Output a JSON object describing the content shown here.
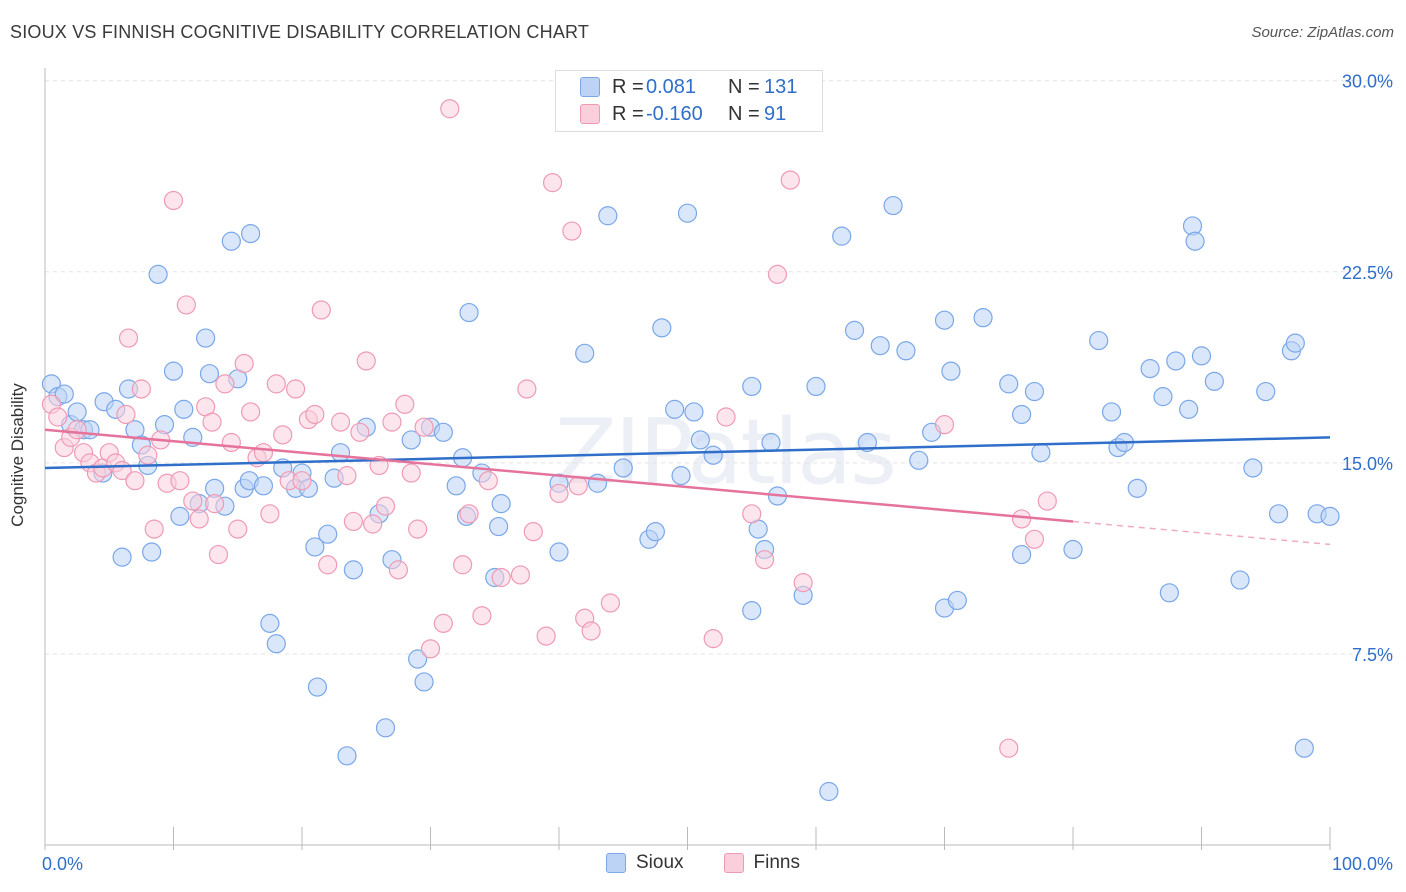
{
  "header": {
    "title": "SIOUX VS FINNISH COGNITIVE DISABILITY CORRELATION CHART",
    "source": "Source: ZipAtlas.com"
  },
  "watermark": "ZIPatlas",
  "stats": [
    {
      "r_label": "R =",
      "r_value": "0.081",
      "n_label": "N =",
      "n_value": "131",
      "color": "#7aa7e8",
      "fill": "#bcd3f5"
    },
    {
      "r_label": "R =",
      "r_value": "-0.160",
      "n_label": "N =",
      "n_value": "91",
      "color": "#ef9ab5",
      "fill": "#f9cfdc"
    }
  ],
  "legend": [
    {
      "label": "Sioux",
      "color": "#7aa7e8",
      "fill": "#bcd3f5"
    },
    {
      "label": "Finns",
      "color": "#ef9ab5",
      "fill": "#f9cfdc"
    }
  ],
  "chart_data": {
    "type": "scatter",
    "title": "SIOUX VS FINNISH COGNITIVE DISABILITY CORRELATION CHART",
    "xlabel": "",
    "ylabel": "Cognitive Disability",
    "xlim": [
      0,
      100
    ],
    "ylim": [
      0,
      30.5
    ],
    "x_tick_labels": [
      "0.0%",
      "100.0%"
    ],
    "y_ticks": [
      7.5,
      15.0,
      22.5,
      30.0
    ],
    "y_tick_labels": [
      "7.5%",
      "15.0%",
      "22.5%",
      "30.0%"
    ],
    "grid": true,
    "series": [
      {
        "name": "Sioux",
        "color": "#7aa7e8",
        "fill": "#bcd3f5",
        "trend_color": "#2f6fca",
        "trend": {
          "x0": 0,
          "y0": 14.8,
          "x1": 100,
          "y1": 16.0
        },
        "points": [
          [
            0.5,
            18.1
          ],
          [
            1,
            17.6
          ],
          [
            1.5,
            17.7
          ],
          [
            2,
            16.5
          ],
          [
            2.5,
            17.0
          ],
          [
            3,
            16.3
          ],
          [
            3.5,
            16.3
          ],
          [
            4.5,
            14.6
          ],
          [
            4.6,
            17.4
          ],
          [
            5.5,
            17.1
          ],
          [
            6,
            11.3
          ],
          [
            6.5,
            17.9
          ],
          [
            7,
            16.3
          ],
          [
            7.5,
            15.7
          ],
          [
            8,
            14.9
          ],
          [
            8.3,
            11.5
          ],
          [
            8.8,
            22.4
          ],
          [
            9.3,
            16.5
          ],
          [
            10,
            18.6
          ],
          [
            10.5,
            12.9
          ],
          [
            10.8,
            17.1
          ],
          [
            11.5,
            16.0
          ],
          [
            12,
            13.4
          ],
          [
            12.5,
            19.9
          ],
          [
            12.8,
            18.5
          ],
          [
            13.2,
            14.0
          ],
          [
            14,
            13.3
          ],
          [
            14.5,
            23.7
          ],
          [
            15,
            18.3
          ],
          [
            15.5,
            14.0
          ],
          [
            15.9,
            14.3
          ],
          [
            16,
            24.0
          ],
          [
            17,
            14.1
          ],
          [
            17.5,
            8.7
          ],
          [
            18,
            7.9
          ],
          [
            18.5,
            14.8
          ],
          [
            19.5,
            14.0
          ],
          [
            20,
            14.6
          ],
          [
            20.5,
            14.0
          ],
          [
            21,
            11.7
          ],
          [
            21.2,
            6.2
          ],
          [
            22,
            12.2
          ],
          [
            22.5,
            14.4
          ],
          [
            23,
            15.4
          ],
          [
            23.5,
            3.5
          ],
          [
            24,
            10.8
          ],
          [
            25,
            16.4
          ],
          [
            26,
            13.0
          ],
          [
            26.5,
            4.6
          ],
          [
            27,
            11.2
          ],
          [
            28.5,
            15.9
          ],
          [
            29,
            7.3
          ],
          [
            29.5,
            6.4
          ],
          [
            30,
            16.4
          ],
          [
            31,
            16.2
          ],
          [
            32,
            14.1
          ],
          [
            32.5,
            15.2
          ],
          [
            32.8,
            12.9
          ],
          [
            33,
            20.9
          ],
          [
            34,
            14.6
          ],
          [
            35,
            10.5
          ],
          [
            35.3,
            12.5
          ],
          [
            35.5,
            13.4
          ],
          [
            40,
            11.5
          ],
          [
            40,
            14.2
          ],
          [
            42,
            19.3
          ],
          [
            43,
            14.2
          ],
          [
            43.8,
            24.7
          ],
          [
            45,
            14.8
          ],
          [
            47,
            12.0
          ],
          [
            47.5,
            12.3
          ],
          [
            48,
            20.3
          ],
          [
            49,
            17.1
          ],
          [
            49.5,
            14.5
          ],
          [
            50,
            24.8
          ],
          [
            50.5,
            17.0
          ],
          [
            51,
            15.9
          ],
          [
            52,
            15.3
          ],
          [
            55,
            18.0
          ],
          [
            55,
            9.2
          ],
          [
            55.5,
            12.4
          ],
          [
            56,
            11.6
          ],
          [
            56.5,
            15.8
          ],
          [
            57,
            13.7
          ],
          [
            59,
            9.8
          ],
          [
            60,
            18.0
          ],
          [
            61,
            2.1
          ],
          [
            62,
            23.9
          ],
          [
            63,
            20.2
          ],
          [
            64,
            15.8
          ],
          [
            65,
            19.6
          ],
          [
            66,
            25.1
          ],
          [
            67,
            19.4
          ],
          [
            68,
            15.1
          ],
          [
            69,
            16.2
          ],
          [
            70,
            20.6
          ],
          [
            70,
            9.3
          ],
          [
            70.5,
            18.6
          ],
          [
            71,
            9.6
          ],
          [
            73,
            20.7
          ],
          [
            75,
            18.1
          ],
          [
            76,
            11.4
          ],
          [
            76,
            16.9
          ],
          [
            77,
            17.8
          ],
          [
            77.5,
            15.4
          ],
          [
            80,
            11.6
          ],
          [
            82,
            19.8
          ],
          [
            83,
            17.0
          ],
          [
            83.5,
            15.6
          ],
          [
            84,
            15.8
          ],
          [
            85,
            14.0
          ],
          [
            86,
            18.7
          ],
          [
            87,
            17.6
          ],
          [
            87.5,
            9.9
          ],
          [
            88,
            19.0
          ],
          [
            89,
            17.1
          ],
          [
            89.3,
            24.3
          ],
          [
            89.5,
            23.7
          ],
          [
            90,
            19.2
          ],
          [
            91,
            18.2
          ],
          [
            93,
            10.4
          ],
          [
            94,
            14.8
          ],
          [
            95,
            17.8
          ],
          [
            96,
            13.0
          ],
          [
            97,
            19.4
          ],
          [
            97.3,
            19.7
          ],
          [
            98,
            3.8
          ],
          [
            99,
            13.0
          ],
          [
            100,
            12.9
          ]
        ]
      },
      {
        "name": "Finns",
        "color": "#ef9ab5",
        "fill": "#f9cfdc",
        "trend_color": "#e5739c",
        "trend": {
          "x0": 0,
          "y0": 16.3,
          "x1": 80,
          "y1": 12.7
        },
        "trend_dashed": {
          "x0": 80,
          "y0": 12.7,
          "x1": 100,
          "y1": 11.8
        },
        "points": [
          [
            0.5,
            17.3
          ],
          [
            1,
            16.8
          ],
          [
            1.5,
            15.6
          ],
          [
            2,
            16.0
          ],
          [
            2.5,
            16.3
          ],
          [
            3,
            15.4
          ],
          [
            3.5,
            15.0
          ],
          [
            4,
            14.6
          ],
          [
            4.5,
            14.8
          ],
          [
            5,
            15.4
          ],
          [
            5.5,
            15.0
          ],
          [
            6,
            14.7
          ],
          [
            6.3,
            16.9
          ],
          [
            6.5,
            19.9
          ],
          [
            7,
            14.3
          ],
          [
            7.5,
            17.9
          ],
          [
            8,
            15.3
          ],
          [
            8.5,
            12.4
          ],
          [
            9,
            15.9
          ],
          [
            9.5,
            14.2
          ],
          [
            10,
            25.3
          ],
          [
            10.5,
            14.3
          ],
          [
            11,
            21.2
          ],
          [
            11.5,
            13.5
          ],
          [
            12,
            12.8
          ],
          [
            12.5,
            17.2
          ],
          [
            13,
            16.6
          ],
          [
            13.2,
            13.4
          ],
          [
            13.5,
            11.4
          ],
          [
            14,
            18.1
          ],
          [
            14.5,
            15.8
          ],
          [
            15,
            12.4
          ],
          [
            15.5,
            18.9
          ],
          [
            16,
            17.0
          ],
          [
            16.5,
            15.2
          ],
          [
            17,
            15.4
          ],
          [
            17.5,
            13.0
          ],
          [
            18,
            18.1
          ],
          [
            18.5,
            16.1
          ],
          [
            19,
            14.3
          ],
          [
            19.5,
            17.9
          ],
          [
            20,
            14.3
          ],
          [
            20.5,
            16.7
          ],
          [
            21,
            16.9
          ],
          [
            21.5,
            21.0
          ],
          [
            22,
            11.0
          ],
          [
            23,
            16.6
          ],
          [
            23.5,
            14.5
          ],
          [
            24,
            12.7
          ],
          [
            24.5,
            16.2
          ],
          [
            25,
            19.0
          ],
          [
            25.5,
            12.6
          ],
          [
            26,
            14.9
          ],
          [
            26.5,
            13.3
          ],
          [
            27,
            16.6
          ],
          [
            27.5,
            10.8
          ],
          [
            28,
            17.3
          ],
          [
            28.5,
            14.6
          ],
          [
            29,
            12.4
          ],
          [
            29.5,
            16.4
          ],
          [
            30,
            7.7
          ],
          [
            31,
            8.7
          ],
          [
            31.5,
            28.9
          ],
          [
            32.5,
            11.0
          ],
          [
            33,
            13.0
          ],
          [
            34,
            9.0
          ],
          [
            34.5,
            14.3
          ],
          [
            35.5,
            10.5
          ],
          [
            37,
            10.6
          ],
          [
            37.5,
            17.9
          ],
          [
            38,
            12.3
          ],
          [
            39,
            8.2
          ],
          [
            39.5,
            26.0
          ],
          [
            40,
            13.8
          ],
          [
            41,
            24.1
          ],
          [
            41.5,
            14.1
          ],
          [
            42,
            8.9
          ],
          [
            42.5,
            8.4
          ],
          [
            44,
            9.5
          ],
          [
            52,
            8.1
          ],
          [
            53,
            16.8
          ],
          [
            55,
            13.0
          ],
          [
            56,
            11.2
          ],
          [
            57,
            22.4
          ],
          [
            58,
            26.1
          ],
          [
            59,
            10.3
          ],
          [
            75,
            3.8
          ],
          [
            76,
            12.8
          ],
          [
            77,
            12.0
          ],
          [
            78,
            13.5
          ],
          [
            70,
            16.5
          ]
        ]
      }
    ]
  }
}
